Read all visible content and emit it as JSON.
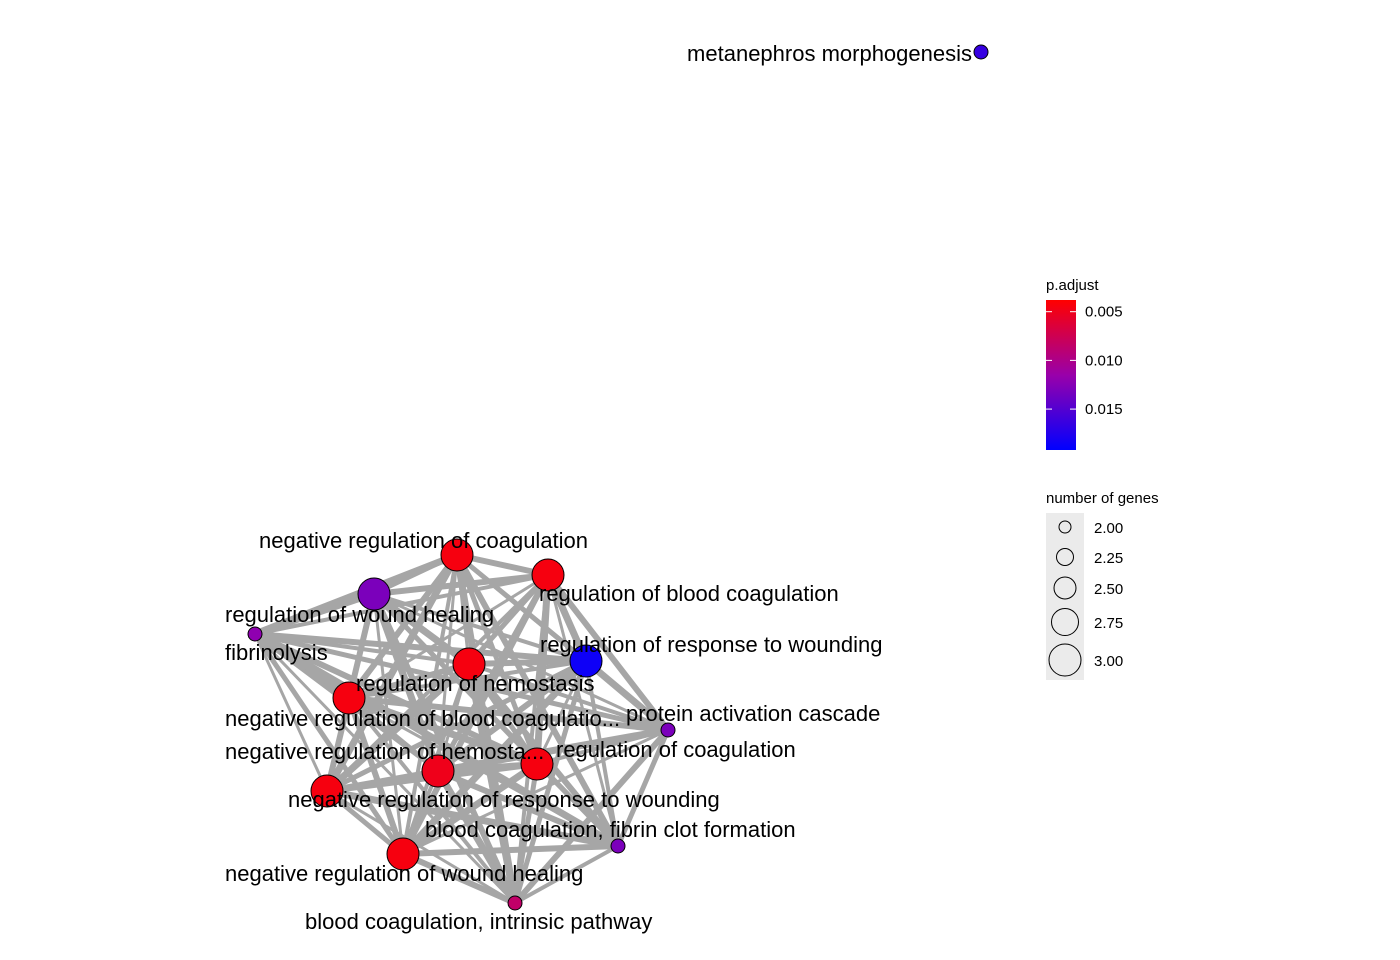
{
  "network": {
    "nodes": [
      {
        "label": "metanephros morphogenesis",
        "genes": 2,
        "padj": 0.0165
      },
      {
        "label": "negative regulation of coagulation",
        "genes": 3,
        "padj": 0.0045
      },
      {
        "label": "regulation of blood coagulation",
        "genes": 3,
        "padj": 0.0045
      },
      {
        "label": "regulation of wound healing",
        "genes": 3,
        "padj": 0.013
      },
      {
        "label": "fibrinolysis",
        "genes": 2,
        "padj": 0.012
      },
      {
        "label": "regulation of response to wounding",
        "genes": 3,
        "padj": 0.0185
      },
      {
        "label": "regulation of hemostasis",
        "genes": 3,
        "padj": 0.0045
      },
      {
        "label": "negative regulation of blood coagulation",
        "genes": 3,
        "padj": 0.0045
      },
      {
        "label": "protein activation cascade",
        "genes": 2,
        "padj": 0.013
      },
      {
        "label": "negative regulation of hemostasis",
        "genes": 3,
        "padj": 0.0045
      },
      {
        "label": "regulation of coagulation",
        "genes": 3,
        "padj": 0.0045
      },
      {
        "label": "negative regulation of response to wounding",
        "genes": 3,
        "padj": 0.005
      },
      {
        "label": "blood coagulation, fibrin clot formation",
        "genes": 2,
        "padj": 0.013
      },
      {
        "label": "negative regulation of wound healing",
        "genes": 3,
        "padj": 0.0045
      },
      {
        "label": "blood coagulation, intrinsic pathway",
        "genes": 2,
        "padj": 0.0085
      }
    ],
    "edge_color": "#a6a6a6"
  },
  "legend_color": {
    "title": "p.adjust",
    "ticks": [
      0.005,
      0.01,
      0.015
    ],
    "tick_labels": [
      "0.005",
      "0.010",
      "0.015"
    ],
    "range": [
      0.0038,
      0.0192
    ],
    "low_color": "#ff0000",
    "mid_color": "#9900aa",
    "high_color": "#0000ff"
  },
  "legend_size": {
    "title": "number of genes",
    "items": [
      "2.00",
      "2.25",
      "2.50",
      "2.75",
      "3.00"
    ],
    "values": [
      2.0,
      2.25,
      2.5,
      2.75,
      3.0
    ]
  }
}
